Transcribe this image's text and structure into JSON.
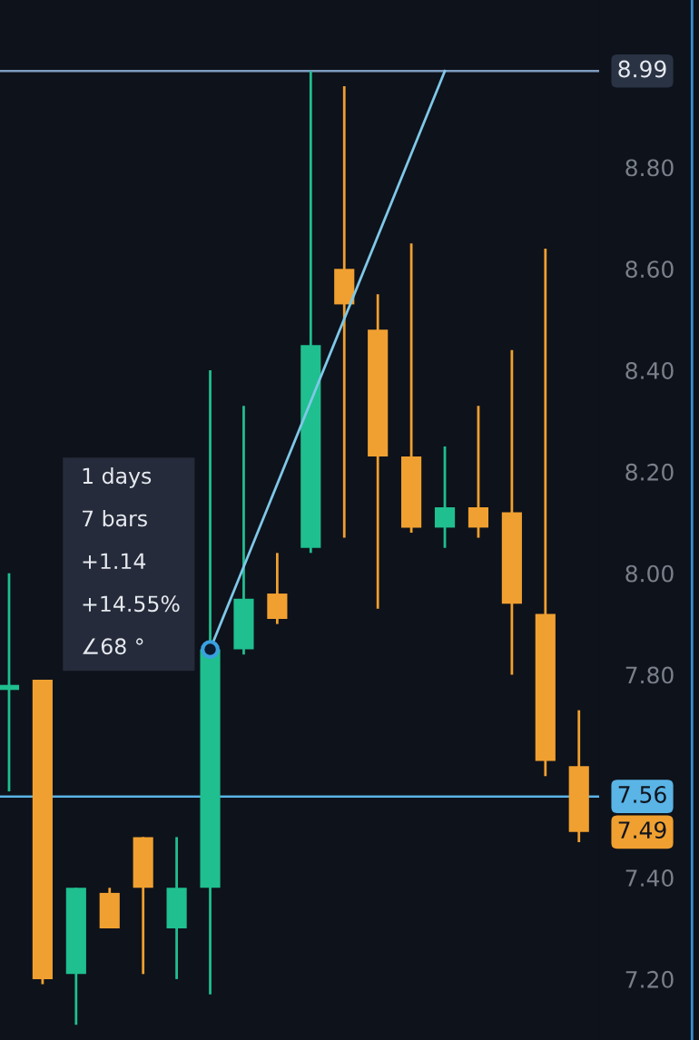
{
  "chart_data": {
    "type": "candlestick",
    "categories": [
      null,
      null,
      null,
      null,
      null,
      null,
      null,
      null,
      null,
      null,
      null,
      null,
      null,
      null,
      null,
      null,
      null,
      null
    ],
    "ohlc": [
      [
        7.77,
        8.0,
        7.57,
        7.78
      ],
      [
        7.79,
        7.79,
        7.19,
        7.2
      ],
      [
        7.21,
        7.38,
        7.11,
        7.38
      ],
      [
        7.37,
        7.38,
        7.3,
        7.3
      ],
      [
        7.48,
        7.48,
        7.21,
        7.38
      ],
      [
        7.3,
        7.48,
        7.2,
        7.38
      ],
      [
        7.38,
        8.4,
        7.17,
        7.85
      ],
      [
        7.85,
        8.33,
        7.84,
        7.95
      ],
      [
        7.96,
        8.04,
        7.9,
        7.91
      ],
      [
        8.05,
        8.99,
        8.04,
        8.45
      ],
      [
        8.6,
        8.96,
        8.07,
        8.53
      ],
      [
        8.48,
        8.55,
        7.93,
        8.23
      ],
      [
        8.23,
        8.65,
        8.08,
        8.09
      ],
      [
        8.09,
        8.25,
        8.05,
        8.13
      ],
      [
        8.13,
        8.33,
        8.07,
        8.09
      ],
      [
        8.12,
        8.44,
        7.8,
        7.94
      ],
      [
        7.92,
        8.64,
        7.6,
        7.63
      ],
      [
        7.62,
        7.73,
        7.47,
        7.49
      ]
    ],
    "colors": [
      "#1fbf8f",
      "#f0a030",
      "#1fbf8f",
      "#f0a030",
      "#f0a030",
      "#1fbf8f",
      "#1fbf8f",
      "#1fbf8f",
      "#f0a030",
      "#1fbf8f",
      "#f0a030",
      "#f0a030",
      "#f0a030",
      "#1fbf8f",
      "#f0a030",
      "#f0a030",
      "#f0a030",
      "#f0a030"
    ],
    "series": [
      {
        "type": "line",
        "color": "#7fc8e8",
        "values": [
          null,
          null,
          null,
          null,
          null,
          null,
          7.85,
          null,
          null,
          null,
          null,
          null,
          null,
          8.99,
          null,
          null,
          null,
          null
        ]
      }
    ],
    "ylim": [
      7.08,
      9.13
    ],
    "yticks": [
      {
        "value": 7.2,
        "label": "7.20"
      },
      {
        "value": 7.4,
        "label": "7.40"
      },
      {
        "value": 7.8,
        "label": "7.80"
      },
      {
        "value": 8.0,
        "label": "8.00"
      },
      {
        "value": 8.2,
        "label": "8.20"
      },
      {
        "value": 8.4,
        "label": "8.40"
      },
      {
        "value": 8.6,
        "label": "8.60"
      },
      {
        "value": 8.8,
        "label": "8.80"
      }
    ],
    "tick_labels": "y",
    "grid": false,
    "ref_lines": [
      {
        "axis": "y",
        "value": 8.99,
        "label": "8.99",
        "color": "#7f9cc0",
        "line_style": "solid"
      },
      {
        "axis": "y",
        "value": 7.56,
        "label": "7.56",
        "color": "#5ab4e6",
        "line_style": "solid"
      }
    ],
    "annotations": [
      "1 days",
      "7 bars",
      "+1.14",
      "+14.55%",
      "∠68 °",
      "7.49"
    ]
  }
}
